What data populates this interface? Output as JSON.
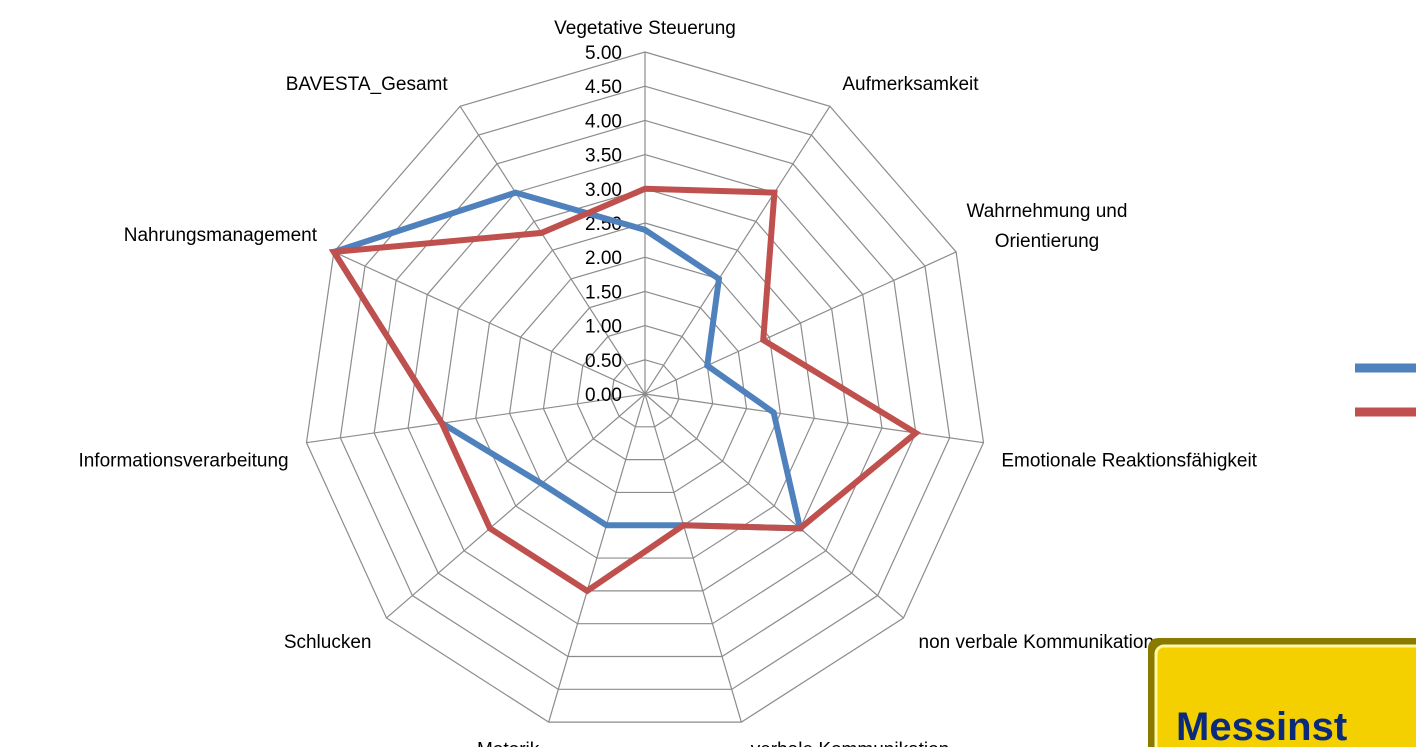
{
  "chart_data": {
    "type": "radar",
    "categories": [
      "Vegetative Steuerung",
      "Aufmerksamkeit",
      "Wahrnehmung und\nOrientierung",
      "Emotionale Reaktionsfähigkeit",
      "non verbale Kommunikation",
      "verbale Kommunikation",
      "Motorik",
      "Schlucken",
      "Informationsverarbeitung",
      "Nahrungsmanagement",
      "BAVESTA_Gesamt"
    ],
    "series": [
      {
        "color": "#4f81bd",
        "values": [
          2.4,
          2.0,
          1.0,
          1.9,
          3.0,
          2.0,
          2.0,
          2.0,
          3.0,
          5.0,
          3.5
        ]
      },
      {
        "color": "#c0504d",
        "values": [
          3.0,
          3.5,
          1.9,
          4.0,
          3.0,
          2.0,
          3.0,
          3.0,
          3.0,
          5.0,
          2.8
        ]
      }
    ],
    "ylim": [
      0,
      5
    ],
    "yticks": [
      {
        "value": 0,
        "label": "0.00"
      },
      {
        "value": 0.5,
        "label": "0.50"
      },
      {
        "value": 1,
        "label": "1.00"
      },
      {
        "value": 1.5,
        "label": "1.50"
      },
      {
        "value": 2,
        "label": "2.00"
      },
      {
        "value": 2.5,
        "label": "2.50"
      },
      {
        "value": 3,
        "label": "3.00"
      },
      {
        "value": 3.5,
        "label": "3.50"
      },
      {
        "value": 4,
        "label": "4.00"
      },
      {
        "value": 4.5,
        "label": "4.50"
      },
      {
        "value": 5,
        "label": "5.00"
      }
    ],
    "grid": true,
    "annotation": "Messinst"
  }
}
